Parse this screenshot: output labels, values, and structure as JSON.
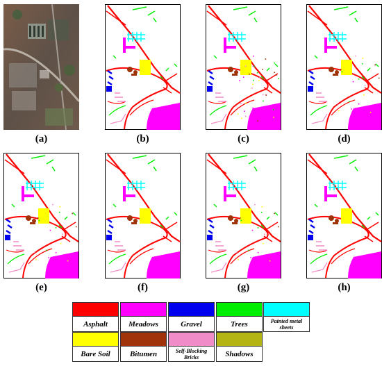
{
  "panels": [
    "(a)",
    "(b)",
    "(c)",
    "(d)",
    "(e)",
    "(f)",
    "(g)",
    "(h)"
  ],
  "legend": [
    {
      "label": "Asphalt",
      "color": "#ff0000"
    },
    {
      "label": "Meadows",
      "color": "#ff00ff"
    },
    {
      "label": "Gravel",
      "color": "#0000ee"
    },
    {
      "label": "Trees",
      "color": "#00ee00"
    },
    {
      "label": "Painted metal sheets",
      "color": "#00ffff"
    },
    {
      "label": "Bare Soil",
      "color": "#ffff00"
    },
    {
      "label": "Bitumen",
      "color": "#a0330a"
    },
    {
      "label": "Self-Blocking Bricks",
      "color": "#f08cc8"
    },
    {
      "label": "Shadows",
      "color": "#b4b414"
    }
  ]
}
